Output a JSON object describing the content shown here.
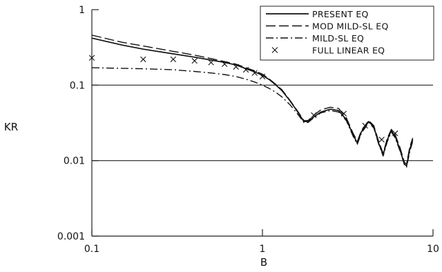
{
  "chart_data": {
    "type": "line",
    "title": "",
    "xlabel": "B",
    "ylabel": "KR",
    "xscale": "log",
    "yscale": "log",
    "xlim": [
      0.1,
      10
    ],
    "ylim": [
      0.001,
      1
    ],
    "x_ticks": [
      {
        "value": 0.1,
        "label": "0.1"
      },
      {
        "value": 1,
        "label": "1"
      },
      {
        "value": 10,
        "label": "10"
      }
    ],
    "y_ticks": [
      {
        "value": 1,
        "label": "1"
      },
      {
        "value": 0.1,
        "label": "0.1"
      },
      {
        "value": 0.01,
        "label": "0.01"
      },
      {
        "value": 0.001,
        "label": "0.001"
      }
    ],
    "grid": "horizontal lines at 0.1 and 0.01",
    "legend_position": "top-right",
    "series": [
      {
        "name": "PRESENT EQ",
        "style": "solid",
        "points": [
          [
            0.1,
            0.42
          ],
          [
            0.15,
            0.34
          ],
          [
            0.2,
            0.3
          ],
          [
            0.3,
            0.26
          ],
          [
            0.4,
            0.235
          ],
          [
            0.5,
            0.215
          ],
          [
            0.6,
            0.2
          ],
          [
            0.7,
            0.185
          ],
          [
            0.8,
            0.165
          ],
          [
            0.9,
            0.15
          ],
          [
            1.0,
            0.135
          ],
          [
            1.1,
            0.118
          ],
          [
            1.2,
            0.1
          ],
          [
            1.3,
            0.085
          ],
          [
            1.45,
            0.062
          ],
          [
            1.6,
            0.045
          ],
          [
            1.75,
            0.033
          ],
          [
            1.85,
            0.033
          ],
          [
            2.0,
            0.038
          ],
          [
            2.2,
            0.044
          ],
          [
            2.5,
            0.048
          ],
          [
            2.8,
            0.046
          ],
          [
            3.1,
            0.035
          ],
          [
            3.4,
            0.022
          ],
          [
            3.6,
            0.017
          ],
          [
            3.8,
            0.024
          ],
          [
            4.2,
            0.033
          ],
          [
            4.5,
            0.028
          ],
          [
            4.8,
            0.017
          ],
          [
            5.1,
            0.012
          ],
          [
            5.4,
            0.019
          ],
          [
            5.7,
            0.025
          ],
          [
            6.0,
            0.021
          ],
          [
            6.4,
            0.014
          ],
          [
            6.8,
            0.009
          ],
          [
            7.0,
            0.0085
          ],
          [
            7.3,
            0.014
          ],
          [
            7.6,
            0.019
          ]
        ]
      },
      {
        "name": "MOD MILD-SL EQ",
        "style": "dashed",
        "points": [
          [
            0.1,
            0.46
          ],
          [
            0.15,
            0.37
          ],
          [
            0.2,
            0.33
          ],
          [
            0.3,
            0.28
          ],
          [
            0.4,
            0.25
          ],
          [
            0.5,
            0.225
          ],
          [
            0.6,
            0.205
          ],
          [
            0.7,
            0.19
          ],
          [
            0.8,
            0.17
          ],
          [
            0.9,
            0.155
          ],
          [
            1.0,
            0.14
          ],
          [
            1.1,
            0.12
          ],
          [
            1.2,
            0.102
          ],
          [
            1.3,
            0.087
          ],
          [
            1.45,
            0.063
          ],
          [
            1.6,
            0.046
          ],
          [
            1.75,
            0.034
          ],
          [
            1.85,
            0.034
          ],
          [
            2.0,
            0.04
          ],
          [
            2.2,
            0.047
          ],
          [
            2.5,
            0.051
          ],
          [
            2.8,
            0.049
          ],
          [
            3.1,
            0.037
          ],
          [
            3.4,
            0.023
          ],
          [
            3.6,
            0.018
          ],
          [
            3.8,
            0.025
          ],
          [
            4.2,
            0.034
          ],
          [
            4.5,
            0.029
          ],
          [
            4.8,
            0.018
          ],
          [
            5.1,
            0.0125
          ],
          [
            5.4,
            0.02
          ],
          [
            5.7,
            0.026
          ],
          [
            6.0,
            0.022
          ],
          [
            6.4,
            0.015
          ],
          [
            6.8,
            0.0095
          ],
          [
            7.0,
            0.009
          ],
          [
            7.3,
            0.015
          ],
          [
            7.6,
            0.02
          ]
        ]
      },
      {
        "name": "MILD-SL EQ",
        "style": "dash-dot",
        "points": [
          [
            0.1,
            0.17
          ],
          [
            0.2,
            0.165
          ],
          [
            0.3,
            0.16
          ],
          [
            0.4,
            0.152
          ],
          [
            0.5,
            0.145
          ],
          [
            0.6,
            0.138
          ],
          [
            0.7,
            0.13
          ],
          [
            0.8,
            0.12
          ],
          [
            0.9,
            0.11
          ],
          [
            1.0,
            0.1
          ],
          [
            1.1,
            0.09
          ],
          [
            1.2,
            0.08
          ],
          [
            1.3,
            0.07
          ],
          [
            1.45,
            0.055
          ],
          [
            1.6,
            0.042
          ],
          [
            1.75,
            0.032
          ],
          [
            1.85,
            0.032
          ],
          [
            2.0,
            0.037
          ],
          [
            2.2,
            0.043
          ],
          [
            2.5,
            0.046
          ],
          [
            2.8,
            0.044
          ],
          [
            3.1,
            0.034
          ],
          [
            3.4,
            0.021
          ],
          [
            3.6,
            0.0165
          ],
          [
            3.8,
            0.023
          ],
          [
            4.2,
            0.032
          ],
          [
            4.5,
            0.027
          ],
          [
            4.8,
            0.0165
          ],
          [
            5.1,
            0.0115
          ],
          [
            5.4,
            0.018
          ],
          [
            5.7,
            0.024
          ],
          [
            6.0,
            0.02
          ],
          [
            6.4,
            0.0135
          ],
          [
            6.8,
            0.0088
          ],
          [
            7.0,
            0.0082
          ],
          [
            7.3,
            0.013
          ],
          [
            7.6,
            0.018
          ]
        ]
      },
      {
        "name": "FULL LINEAR EQ",
        "style": "markers-x",
        "points": [
          [
            0.1,
            0.23
          ],
          [
            0.2,
            0.22
          ],
          [
            0.3,
            0.22
          ],
          [
            0.4,
            0.21
          ],
          [
            0.5,
            0.2
          ],
          [
            0.6,
            0.19
          ],
          [
            0.7,
            0.175
          ],
          [
            0.8,
            0.16
          ],
          [
            0.9,
            0.145
          ],
          [
            1.0,
            0.13
          ],
          [
            2.0,
            0.04
          ],
          [
            3.0,
            0.042
          ],
          [
            4.0,
            0.029
          ],
          [
            5.0,
            0.019
          ],
          [
            6.0,
            0.023
          ]
        ]
      }
    ]
  }
}
